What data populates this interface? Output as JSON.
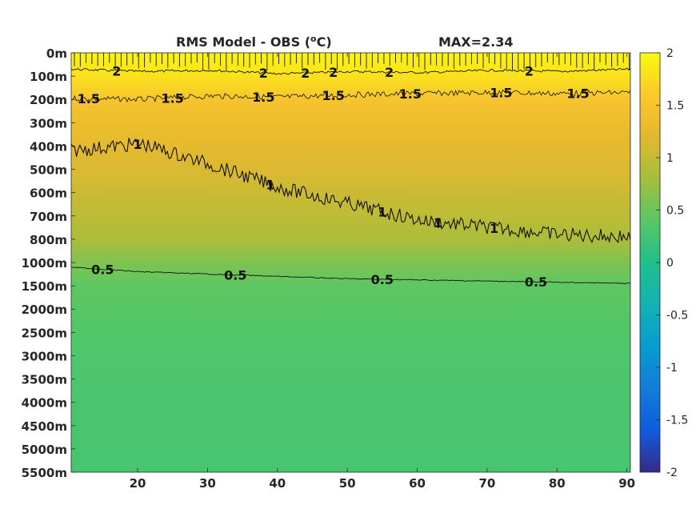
{
  "chart_data": {
    "type": "heatmap",
    "title": "RMS Model - OBS (",
    "title_superscript": "o",
    "title_unit": "C)",
    "max_label": "MAX=2.34",
    "x_ticks": [
      20,
      30,
      40,
      50,
      60,
      70,
      80,
      90
    ],
    "xlim": [
      10.5,
      90.5
    ],
    "y_tick_labels": [
      "0m",
      "100m",
      "200m",
      "300m",
      "400m",
      "500m",
      "600m",
      "700m",
      "800m",
      "1000m",
      "1500m",
      "2000m",
      "2500m",
      "3000m",
      "3500m",
      "4000m",
      "4500m",
      "5000m",
      "5500m"
    ],
    "colorbar": {
      "ticks": [
        "2",
        "1.5",
        "1",
        "0.5",
        "0",
        "-0.5",
        "-1",
        "-1.5",
        "-2"
      ],
      "range": [
        -2,
        2
      ],
      "colormap": "parula"
    },
    "contours": [
      {
        "level": 2,
        "label": "2",
        "depth_index": [
          0.7,
          0.8,
          0.75,
          0.9,
          0.8,
          0.85,
          0.75,
          0.8,
          0.7
        ]
      },
      {
        "level": 1.5,
        "label": "1.5",
        "depth_index": [
          1.95,
          2.0,
          1.85,
          1.9,
          1.8,
          1.75,
          1.7,
          1.75,
          1.7
        ]
      },
      {
        "level": 1,
        "label": "1",
        "depth_index": [
          4.2,
          3.9,
          4.8,
          5.8,
          6.5,
          7.2,
          7.5,
          7.8,
          7.9
        ]
      },
      {
        "level": 0.5,
        "label": "0.5",
        "depth_index": [
          9.2,
          9.4,
          9.5,
          9.6,
          9.7,
          9.75,
          9.8,
          9.85,
          9.9
        ]
      }
    ],
    "contour_label_x": {
      "2": [
        17,
        38,
        44,
        48,
        56,
        76
      ],
      "1.5": [
        13,
        25,
        38,
        48,
        59,
        72,
        83
      ],
      "1": [
        20,
        39,
        55,
        63,
        71
      ],
      "0.5": [
        15,
        34,
        55,
        77
      ]
    },
    "value_profile": {
      "depth_index": [
        0,
        1,
        2,
        3,
        4,
        5,
        6,
        7,
        8,
        9,
        10,
        12,
        14,
        18
      ],
      "value": [
        1.95,
        1.8,
        1.5,
        1.35,
        1.25,
        1.15,
        1.05,
        0.95,
        0.85,
        0.6,
        0.42,
        0.35,
        0.3,
        0.28
      ]
    }
  }
}
